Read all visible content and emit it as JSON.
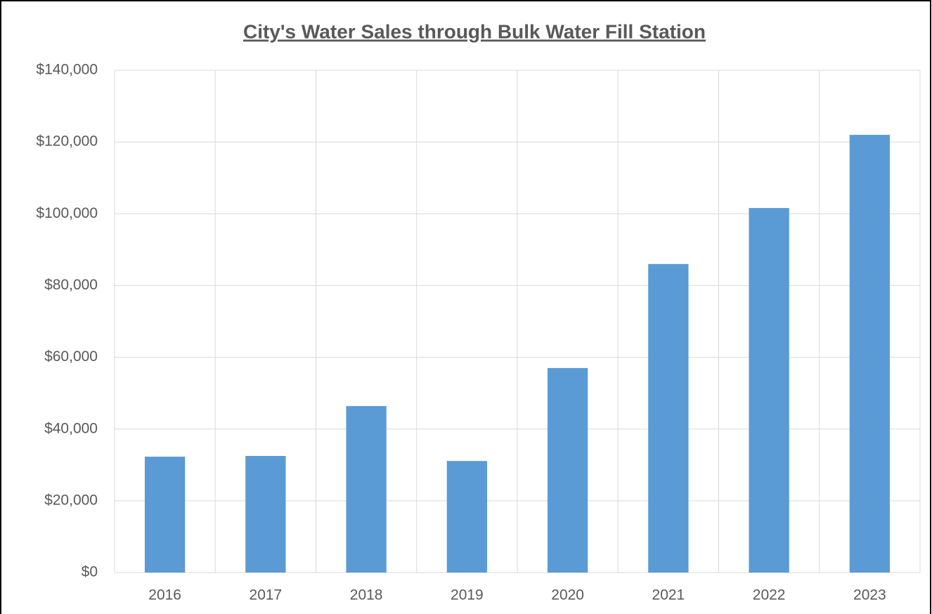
{
  "chart_data": {
    "type": "bar",
    "title": "City's Water Sales through Bulk Water Fill Station",
    "categories": [
      "2016",
      "2017",
      "2018",
      "2019",
      "2020",
      "2021",
      "2022",
      "2023"
    ],
    "values": [
      32300,
      32500,
      46400,
      31100,
      57000,
      86000,
      101600,
      122000
    ],
    "color": "#5b9bd5",
    "ylim": [
      0,
      140000
    ],
    "yticks": [
      {
        "value": 0,
        "label": "$0"
      },
      {
        "value": 20000,
        "label": "$20,000"
      },
      {
        "value": 40000,
        "label": "$40,000"
      },
      {
        "value": 60000,
        "label": "$60,000"
      },
      {
        "value": 80000,
        "label": "$80,000"
      },
      {
        "value": 100000,
        "label": "$100,000"
      },
      {
        "value": 120000,
        "label": "$120,000"
      },
      {
        "value": 140000,
        "label": "$140,000"
      }
    ],
    "grid": true
  }
}
